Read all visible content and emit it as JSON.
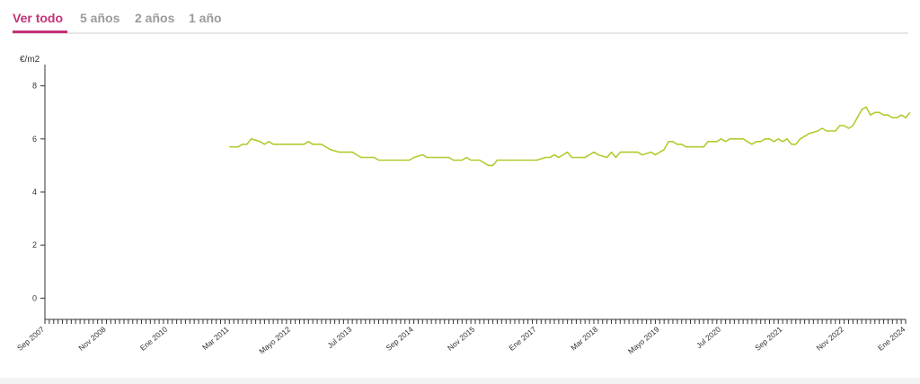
{
  "tabs": [
    {
      "label": "Ver todo",
      "active": true
    },
    {
      "label": "5 años",
      "active": false
    },
    {
      "label": "2 años",
      "active": false
    },
    {
      "label": "1 año",
      "active": false
    }
  ],
  "colors": {
    "accent": "#c4307a",
    "line": "#b5c92f",
    "tab_inactive": "#9a9a9a",
    "axis": "#333333"
  },
  "chart_data": {
    "type": "line",
    "title": "",
    "xlabel": "",
    "ylabel": "€/m2",
    "ylim": [
      -0.8,
      8.8
    ],
    "y_ticks": [
      0,
      2,
      4,
      6,
      8
    ],
    "x_range": [
      "2007-09",
      "2024-01"
    ],
    "x_tick_labels": [
      {
        "label": "Sep 2007",
        "date": "2007-09"
      },
      {
        "label": "Nov 2008",
        "date": "2008-11"
      },
      {
        "label": "Ene 2010",
        "date": "2010-01"
      },
      {
        "label": "Mar 2011",
        "date": "2011-03"
      },
      {
        "label": "Mayo 2012",
        "date": "2012-05"
      },
      {
        "label": "Jul 2013",
        "date": "2013-07"
      },
      {
        "label": "Sep 2014",
        "date": "2014-09"
      },
      {
        "label": "Nov 2015",
        "date": "2015-11"
      },
      {
        "label": "Ene 2017",
        "date": "2017-01"
      },
      {
        "label": "Mar 2018",
        "date": "2018-03"
      },
      {
        "label": "Mayo 2019",
        "date": "2019-05"
      },
      {
        "label": "Jul 2020",
        "date": "2020-07"
      },
      {
        "label": "Sep 2021",
        "date": "2021-09"
      },
      {
        "label": "Nov 2022",
        "date": "2022-11"
      },
      {
        "label": "Ene 2024",
        "date": "2024-01"
      }
    ],
    "grid": false,
    "legend": "none",
    "series": [
      {
        "points": [
          [
            "2011-03",
            5.7
          ],
          [
            "2011-05",
            5.7
          ],
          [
            "2011-06",
            5.8
          ],
          [
            "2011-07",
            5.8
          ],
          [
            "2011-08",
            6.0
          ],
          [
            "2011-10",
            5.9
          ],
          [
            "2011-11",
            5.8
          ],
          [
            "2011-12",
            5.9
          ],
          [
            "2012-01",
            5.8
          ],
          [
            "2012-06",
            5.8
          ],
          [
            "2012-08",
            5.8
          ],
          [
            "2012-09",
            5.9
          ],
          [
            "2012-10",
            5.8
          ],
          [
            "2012-12",
            5.8
          ],
          [
            "2013-02",
            5.6
          ],
          [
            "2013-04",
            5.5
          ],
          [
            "2013-07",
            5.5
          ],
          [
            "2013-09",
            5.3
          ],
          [
            "2013-12",
            5.3
          ],
          [
            "2014-01",
            5.2
          ],
          [
            "2014-08",
            5.2
          ],
          [
            "2014-09",
            5.3
          ],
          [
            "2014-11",
            5.4
          ],
          [
            "2014-12",
            5.3
          ],
          [
            "2015-05",
            5.3
          ],
          [
            "2015-06",
            5.2
          ],
          [
            "2015-08",
            5.2
          ],
          [
            "2015-09",
            5.3
          ],
          [
            "2015-10",
            5.2
          ],
          [
            "2015-12",
            5.2
          ],
          [
            "2016-02",
            5.0
          ],
          [
            "2016-03",
            5.0
          ],
          [
            "2016-04",
            5.2
          ],
          [
            "2017-01",
            5.2
          ],
          [
            "2017-03",
            5.3
          ],
          [
            "2017-04",
            5.3
          ],
          [
            "2017-05",
            5.4
          ],
          [
            "2017-06",
            5.3
          ],
          [
            "2017-08",
            5.5
          ],
          [
            "2017-09",
            5.3
          ],
          [
            "2017-12",
            5.3
          ],
          [
            "2018-01",
            5.4
          ],
          [
            "2018-02",
            5.5
          ],
          [
            "2018-03",
            5.4
          ],
          [
            "2018-05",
            5.3
          ],
          [
            "2018-06",
            5.5
          ],
          [
            "2018-07",
            5.3
          ],
          [
            "2018-08",
            5.5
          ],
          [
            "2018-12",
            5.5
          ],
          [
            "2019-01",
            5.4
          ],
          [
            "2019-03",
            5.5
          ],
          [
            "2019-04",
            5.4
          ],
          [
            "2019-06",
            5.6
          ],
          [
            "2019-07",
            5.9
          ],
          [
            "2019-08",
            5.9
          ],
          [
            "2019-09",
            5.8
          ],
          [
            "2019-10",
            5.8
          ],
          [
            "2019-11",
            5.7
          ],
          [
            "2020-03",
            5.7
          ],
          [
            "2020-04",
            5.9
          ],
          [
            "2020-06",
            5.9
          ],
          [
            "2020-07",
            6.0
          ],
          [
            "2020-08",
            5.9
          ],
          [
            "2020-09",
            6.0
          ],
          [
            "2020-12",
            6.0
          ],
          [
            "2021-01",
            5.9
          ],
          [
            "2021-02",
            5.8
          ],
          [
            "2021-03",
            5.9
          ],
          [
            "2021-04",
            5.9
          ],
          [
            "2021-05",
            6.0
          ],
          [
            "2021-06",
            6.0
          ],
          [
            "2021-07",
            5.9
          ],
          [
            "2021-08",
            6.0
          ],
          [
            "2021-09",
            5.9
          ],
          [
            "2021-10",
            6.0
          ],
          [
            "2021-11",
            5.8
          ],
          [
            "2021-12",
            5.8
          ],
          [
            "2022-01",
            6.0
          ],
          [
            "2022-03",
            6.2
          ],
          [
            "2022-05",
            6.3
          ],
          [
            "2022-06",
            6.4
          ],
          [
            "2022-07",
            6.3
          ],
          [
            "2022-09",
            6.3
          ],
          [
            "2022-10",
            6.5
          ],
          [
            "2022-11",
            6.5
          ],
          [
            "2022-12",
            6.4
          ],
          [
            "2023-01",
            6.5
          ],
          [
            "2023-02",
            6.8
          ],
          [
            "2023-03",
            7.1
          ],
          [
            "2023-04",
            7.2
          ],
          [
            "2023-05",
            6.9
          ],
          [
            "2023-06",
            7.0
          ],
          [
            "2023-07",
            7.0
          ],
          [
            "2023-08",
            6.9
          ],
          [
            "2023-09",
            6.9
          ],
          [
            "2023-10",
            6.8
          ],
          [
            "2023-11",
            6.8
          ],
          [
            "2023-12",
            6.9
          ],
          [
            "2024-01",
            6.8
          ],
          [
            "2024-02",
            7.0
          ]
        ]
      }
    ]
  }
}
